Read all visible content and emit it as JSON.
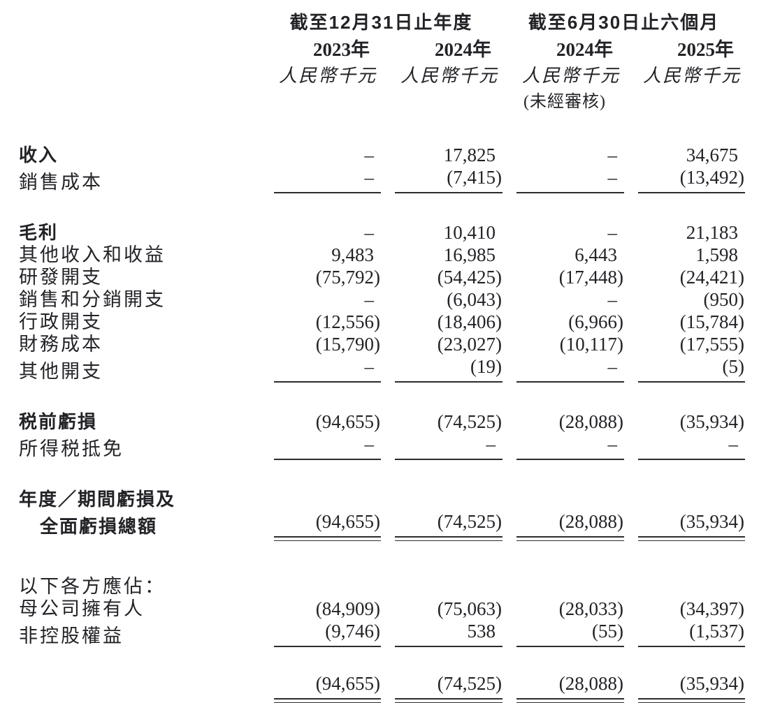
{
  "page": {
    "background": "#ffffff",
    "text_color": "#232227",
    "rule_color": "#2c2b30"
  },
  "table": {
    "unit_note": "人民幣千元",
    "column_groups": [
      {
        "label": "截至12月31日止年度"
      },
      {
        "label": "截至6月30日止六個月"
      }
    ],
    "columns": [
      {
        "year": "2023年",
        "unit": "人民幣千元",
        "note": ""
      },
      {
        "year": "2024年",
        "unit": "人民幣千元",
        "note": ""
      },
      {
        "year": "2024年",
        "unit": "人民幣千元",
        "note": "(未經審核)"
      },
      {
        "year": "2025年",
        "unit": "人民幣千元",
        "note": ""
      }
    ],
    "rows": [
      {
        "type": "gap",
        "size": "top"
      },
      {
        "label": "收入",
        "bold": true,
        "values": [
          "–",
          "17,825",
          "–",
          "34,675"
        ]
      },
      {
        "label": "銷售成本",
        "values": [
          "–",
          "(7,415)",
          "–",
          "(13,492)"
        ],
        "rule": "single"
      },
      {
        "type": "gap",
        "size": "md"
      },
      {
        "label": "毛利",
        "bold": true,
        "values": [
          "–",
          "10,410",
          "–",
          "21,183"
        ]
      },
      {
        "label": "其他收入和收益",
        "values": [
          "9,483",
          "16,985",
          "6,443",
          "1,598"
        ]
      },
      {
        "label": "研發開支",
        "values": [
          "(75,792)",
          "(54,425)",
          "(17,448)",
          "(24,421)"
        ]
      },
      {
        "label": "銷售和分銷開支",
        "values": [
          "–",
          "(6,043)",
          "–",
          "(950)"
        ]
      },
      {
        "label": "行政開支",
        "values": [
          "(12,556)",
          "(18,406)",
          "(6,966)",
          "(15,784)"
        ]
      },
      {
        "label": "財務成本",
        "values": [
          "(15,790)",
          "(23,027)",
          "(10,117)",
          "(17,555)"
        ]
      },
      {
        "label": "其他開支",
        "values": [
          "–",
          "(19)",
          "–",
          "(5)"
        ],
        "rule": "single"
      },
      {
        "type": "gap",
        "size": "md"
      },
      {
        "label": "税前虧損",
        "bold": true,
        "values": [
          "(94,655)",
          "(74,525)",
          "(28,088)",
          "(35,934)"
        ]
      },
      {
        "label": "所得税抵免",
        "values": [
          "–",
          "–",
          "–",
          "–"
        ],
        "rule": "single"
      },
      {
        "type": "gap",
        "size": "md"
      },
      {
        "label": "年度／期間虧損及",
        "bold": true,
        "values": [
          "",
          "",
          "",
          ""
        ]
      },
      {
        "label": "全面虧損總額",
        "bold": true,
        "indent": true,
        "values": [
          "(94,655)",
          "(74,525)",
          "(28,088)",
          "(35,934)"
        ],
        "rule": "double"
      },
      {
        "type": "gap",
        "size": "lg"
      },
      {
        "label": "以下各方應佔：",
        "values": [
          "",
          "",
          "",
          ""
        ]
      },
      {
        "label": "母公司擁有人",
        "values": [
          "(84,909)",
          "(75,063)",
          "(28,033)",
          "(34,397)"
        ]
      },
      {
        "label": "非控股權益",
        "values": [
          "(9,746)",
          "538",
          "(55)",
          "(1,537)"
        ],
        "rule": "single"
      },
      {
        "type": "gap",
        "size": "sm"
      },
      {
        "label": "",
        "values": [
          "(94,655)",
          "(74,525)",
          "(28,088)",
          "(35,934)"
        ],
        "rule": "double"
      }
    ]
  }
}
